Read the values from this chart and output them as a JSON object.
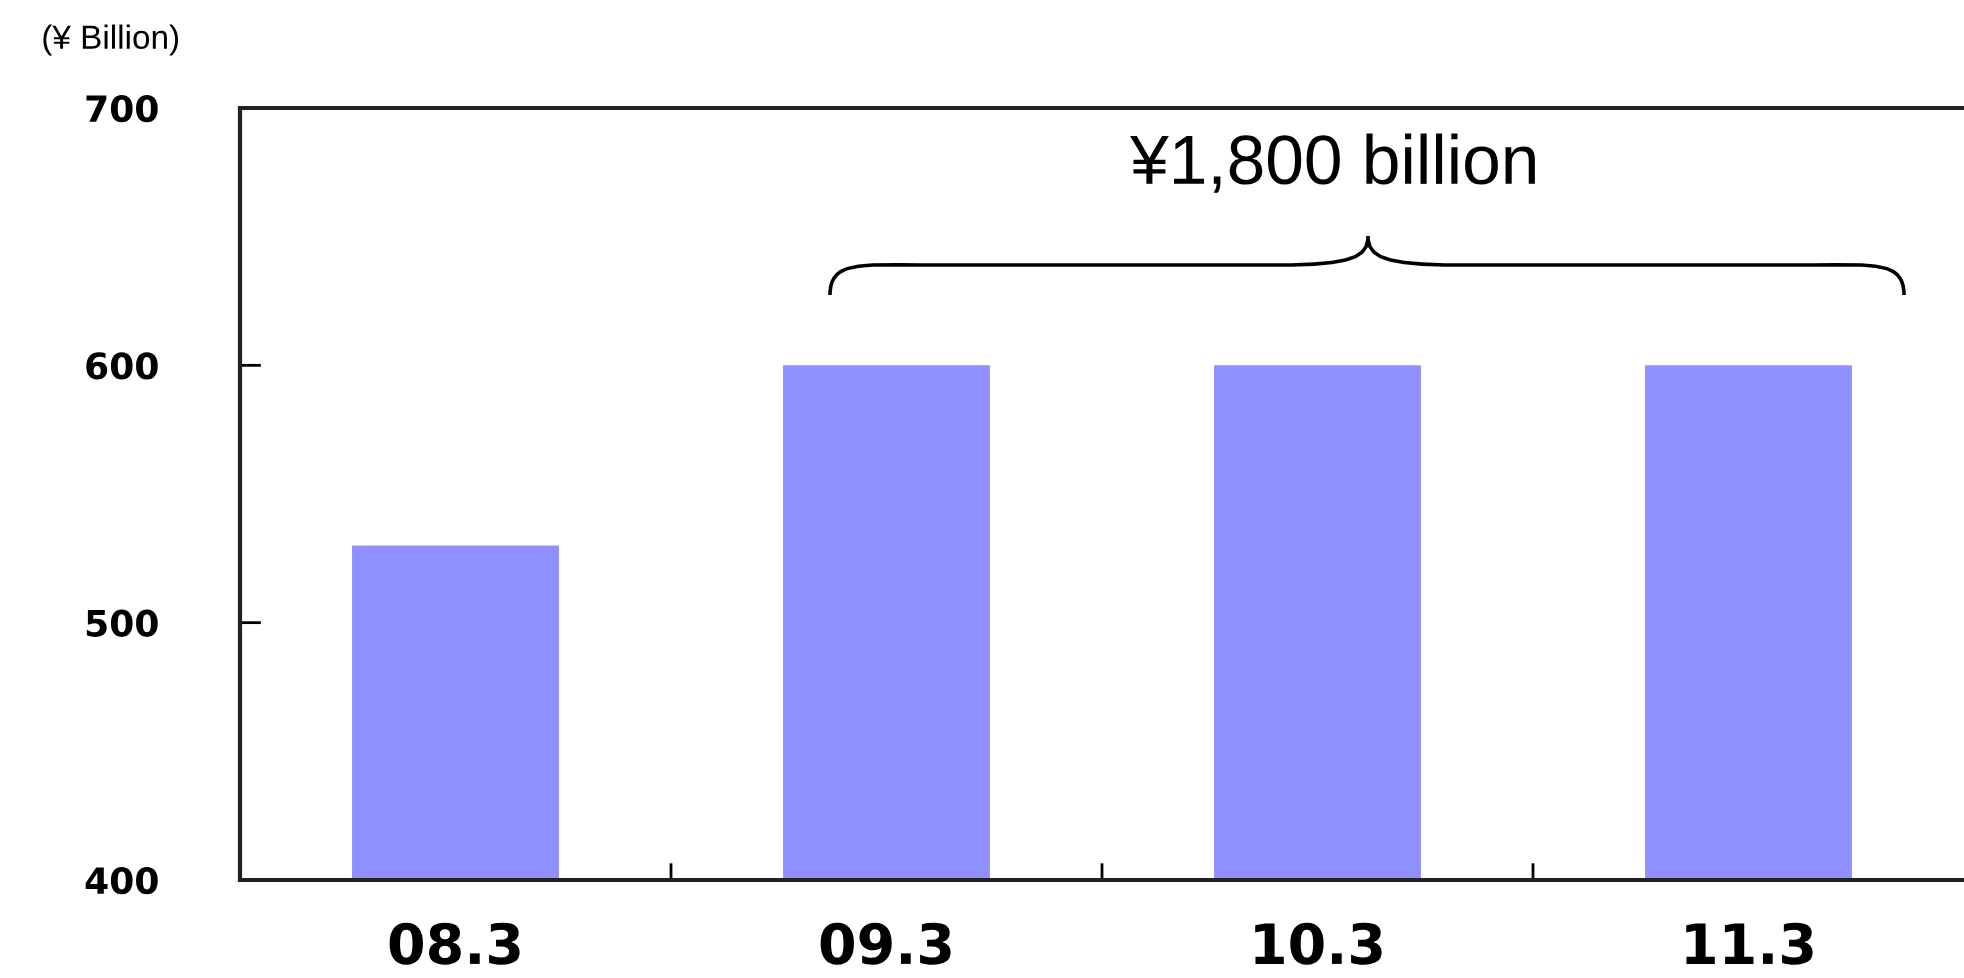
{
  "chart_data": {
    "type": "bar",
    "ylabel": "(¥ Billion)",
    "categories": [
      "08.3",
      "09.3",
      "10.3",
      "11.3"
    ],
    "values": [
      530,
      600,
      600,
      600
    ],
    "color": "#8f8fff",
    "ylim": [
      400,
      700
    ],
    "yticks": [
      400,
      500,
      600,
      700
    ],
    "annotations": [
      "¥1,800 billion"
    ]
  }
}
